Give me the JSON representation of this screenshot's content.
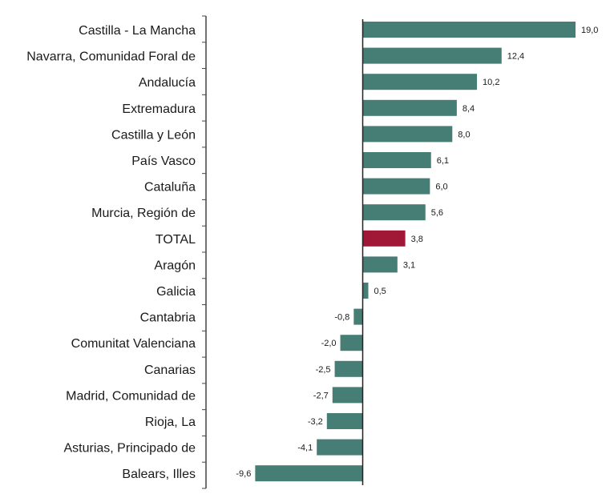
{
  "chart_data": {
    "type": "bar",
    "orientation": "horizontal",
    "title": "",
    "xlabel": "",
    "ylabel": "",
    "categories": [
      "Castilla - La Mancha",
      "Navarra, Comunidad Foral de",
      "Andalucía",
      "Extremadura",
      "Castilla y León",
      "País Vasco",
      "Cataluña",
      "Murcia, Región de",
      "TOTAL",
      "Aragón",
      "Galicia",
      "Cantabria",
      "Comunitat Valenciana",
      "Canarias",
      "Madrid, Comunidad de",
      "Rioja, La",
      "Asturias, Principado de",
      "Balears, Illes"
    ],
    "values": [
      19.0,
      12.4,
      10.2,
      8.4,
      8.0,
      6.1,
      6.0,
      5.6,
      3.8,
      3.1,
      0.5,
      -0.8,
      -2.0,
      -2.5,
      -2.7,
      -3.2,
      -4.1,
      -9.6
    ],
    "value_labels": [
      "19,0",
      "12,4",
      "10,2",
      "8,4",
      "8,0",
      "6,1",
      "6,0",
      "5,6",
      "3,8",
      "3,1",
      "0,5",
      "-0,8",
      "-2,0",
      "-2,5",
      "-2,7",
      "-3,2",
      "-4,1",
      "-9,6"
    ],
    "highlight_category": "TOTAL",
    "xlim": [
      -9.6,
      19.0
    ],
    "grid": false,
    "legend": "none",
    "colors": {
      "bar": "#467d74",
      "highlight": "#a01835",
      "axis": "#444444",
      "text": "#1a1a1a"
    }
  }
}
